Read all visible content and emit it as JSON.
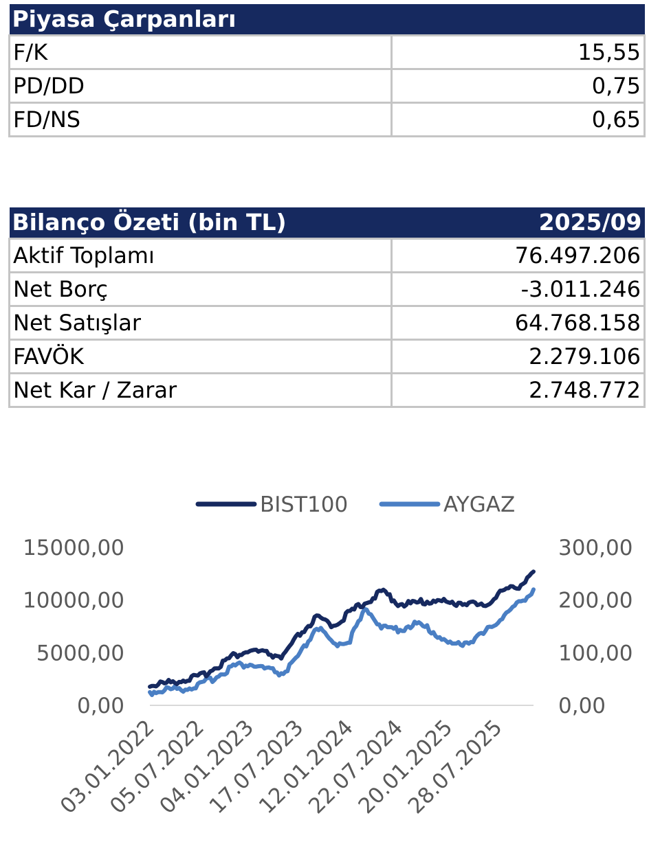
{
  "market_multiples": {
    "title": "Piyasa Çarpanları",
    "rows": [
      {
        "label": "F/K",
        "value": "15,55"
      },
      {
        "label": "PD/DD",
        "value": "0,75"
      },
      {
        "label": "FD/NS",
        "value": "0,65"
      }
    ]
  },
  "balance_summary": {
    "title": "Bilanço Özeti (bin TL)",
    "period": "2025/09",
    "rows": [
      {
        "label": "Aktif Toplamı",
        "value": "76.497.206"
      },
      {
        "label": "Net Borç",
        "value": "-3.011.246"
      },
      {
        "label": "Net Satışlar",
        "value": "64.768.158"
      },
      {
        "label": "FAVÖK",
        "value": "2.279.106"
      },
      {
        "label": "Net Kar / Zarar",
        "value": "2.748.772"
      }
    ]
  },
  "chart_data": {
    "type": "line",
    "title": "",
    "legend_position": "top",
    "grid": false,
    "x_tick_labels": [
      "03.01.2022",
      "05.07.2022",
      "04.01.2023",
      "17.07.2023",
      "12.01.2024",
      "22.07.2024",
      "20.01.2025",
      "28.07.2025"
    ],
    "y_left": {
      "min": 0,
      "max": 15000,
      "ticks": [
        "0,00",
        "5000,00",
        "10000,00",
        "15000,00"
      ]
    },
    "y_right": {
      "min": 0,
      "max": 300,
      "ticks": [
        "0,00",
        "100,00",
        "200,00",
        "300,00"
      ]
    },
    "x": [
      "2022-01",
      "2022-03",
      "2022-05",
      "2022-07",
      "2022-09",
      "2022-11",
      "2023-01",
      "2023-03",
      "2023-05",
      "2023-07",
      "2023-09",
      "2023-11",
      "2024-01",
      "2024-03",
      "2024-05",
      "2024-07",
      "2024-09",
      "2024-11",
      "2025-01",
      "2025-03",
      "2025-05",
      "2025-07",
      "2025-09",
      "2025-11"
    ],
    "series": [
      {
        "name": "BIST100",
        "axis": "left",
        "color": "#16295f",
        "values": [
          1950,
          2100,
          2450,
          2700,
          3700,
          4700,
          5200,
          4900,
          4600,
          6800,
          8300,
          7600,
          8800,
          9900,
          10800,
          9600,
          9700,
          10000,
          9700,
          9800,
          9300,
          10800,
          11200,
          12700
        ]
      },
      {
        "name": "AYGAZ",
        "axis": "right",
        "color": "#4a7fc4",
        "values": [
          25,
          30,
          32,
          38,
          55,
          75,
          78,
          68,
          60,
          95,
          150,
          115,
          125,
          185,
          145,
          145,
          155,
          140,
          115,
          120,
          135,
          165,
          190,
          220
        ]
      }
    ]
  }
}
